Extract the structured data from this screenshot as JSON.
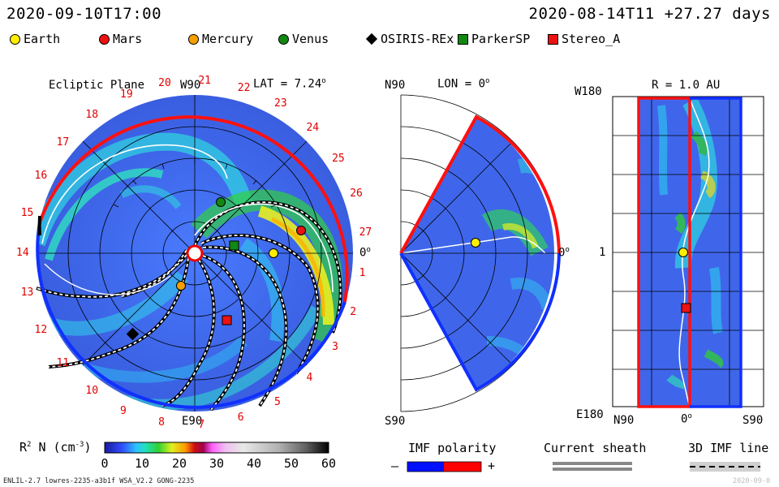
{
  "header": {
    "forecast_time": "2020-09-10T17:00",
    "model_time": "2020-08-14T11 +27.27 days"
  },
  "bodies": [
    {
      "name": "Earth",
      "color": "#ffee00",
      "shape": "circle"
    },
    {
      "name": "Mars",
      "color": "#ee1111",
      "shape": "circle"
    },
    {
      "name": "Mercury",
      "color": "#f5a000",
      "shape": "circle"
    },
    {
      "name": "Venus",
      "color": "#118811",
      "shape": "circle"
    },
    {
      "name": "OSIRIS-REx",
      "color": "#000000",
      "shape": "diamond"
    },
    {
      "name": "ParkerSP",
      "color": "#118811",
      "shape": "square"
    },
    {
      "name": "Stereo_A",
      "color": "#ee1111",
      "shape": "square"
    }
  ],
  "ecliptic_panel": {
    "title": "Ecliptic Plane",
    "top_label": "W90",
    "bottom_label": "E90",
    "lat_label": "LAT = 7.24",
    "lat_degree": "o",
    "zero_label": "0",
    "zero_degree": "o",
    "carrington_numbers": [
      "20",
      "21",
      "22",
      "23",
      "24",
      "25",
      "26",
      "27",
      "1",
      "2",
      "3",
      "4",
      "5",
      "6",
      "7",
      "8",
      "9",
      "10",
      "11",
      "12",
      "13",
      "14",
      "15",
      "16",
      "17",
      "18",
      "19"
    ]
  },
  "meridional_panel": {
    "top_left": "N90",
    "title": "LON = 0",
    "title_degree": "o",
    "bottom_left": "S90",
    "zero_label": "0",
    "zero_degree": "o"
  },
  "radial_panel": {
    "title": "R = 1.0 AU",
    "top_left": "W180",
    "mid_left": "1",
    "bottom_left": "E180",
    "bottom_n": "N90",
    "bottom_zero": "0",
    "bottom_zero_degree": "o",
    "bottom_s": "S90"
  },
  "colorbar": {
    "label_prefix": "R",
    "label_sup": "2",
    "label_mid": " N (cm",
    "label_sup2": "-3",
    "label_suffix": ")",
    "ticks": [
      "0",
      "10",
      "20",
      "30",
      "40",
      "50",
      "60"
    ]
  },
  "imf_polarity": {
    "title": "IMF polarity",
    "minus": "–",
    "plus": "+",
    "neg_color": "#0010ff",
    "pos_color": "#ff0000"
  },
  "current_sheath": {
    "title": "Current sheath"
  },
  "imf_line": {
    "title": "3D IMF line"
  },
  "footer": {
    "left": "ENLIL-2.7 lowres-2235-a3b1f WSA_V2.2 GONG-2235",
    "right": "2020-09-0"
  }
}
